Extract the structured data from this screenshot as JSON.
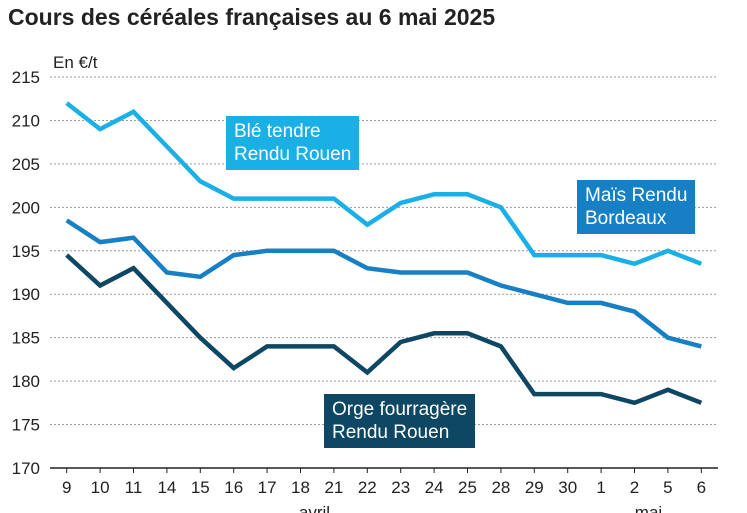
{
  "chart_data": {
    "type": "line",
    "title": "Cours des céréales françaises au 6 mai 2025",
    "ylabel": "En €/t",
    "ylim": [
      170,
      215
    ],
    "yticks": [
      170,
      175,
      180,
      185,
      190,
      195,
      200,
      205,
      210,
      215
    ],
    "grid": true,
    "categories": [
      "9",
      "10",
      "11",
      "14",
      "15",
      "16",
      "17",
      "18",
      "21",
      "22",
      "23",
      "24",
      "25",
      "28",
      "29",
      "30",
      "1",
      "2",
      "5",
      "6"
    ],
    "month_labels": [
      {
        "label": "avril",
        "category": "18"
      },
      {
        "label": "mai",
        "category": "2"
      }
    ],
    "series": [
      {
        "name": "Blé tendre Rendu Rouen",
        "color": "#1ab0e6",
        "values": [
          212,
          209,
          211,
          207,
          203,
          201,
          201,
          201,
          201,
          198,
          200.5,
          201.5,
          201.5,
          200,
          194.5,
          194.5,
          194.5,
          193.5,
          195,
          193.5
        ]
      },
      {
        "name": "Maïs Rendu Bordeaux",
        "color": "#1780c5",
        "values": [
          198.5,
          196,
          196.5,
          192.5,
          192,
          194.5,
          195,
          195,
          195,
          193,
          192.5,
          192.5,
          192.5,
          191,
          190,
          189,
          189,
          188,
          185,
          184
        ]
      },
      {
        "name": "Orge fourragère Rendu Rouen",
        "color": "#0d4764",
        "values": [
          194.5,
          191,
          193,
          189,
          185,
          181.5,
          184,
          184,
          184,
          181,
          184.5,
          185.5,
          185.5,
          184,
          178.5,
          178.5,
          178.5,
          177.5,
          179,
          177.5
        ]
      }
    ]
  },
  "labels": {
    "ble_line1": "Blé tendre",
    "ble_line2": "Rendu Rouen",
    "mais_line1": "Maïs Rendu",
    "mais_line2": "Bordeaux",
    "orge_line1": "Orge fourragère",
    "orge_line2": "Rendu Rouen"
  }
}
